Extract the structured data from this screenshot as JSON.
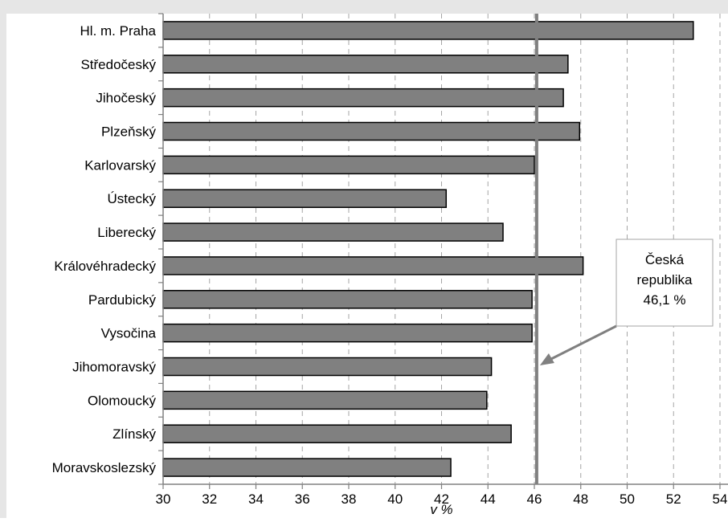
{
  "chart_data": {
    "type": "bar",
    "orientation": "horizontal",
    "categories": [
      "Hl. m. Praha",
      "Středočeský",
      "Jihočeský",
      "Plzeňský",
      "Karlovarský",
      "Ústecký",
      "Liberecký",
      "Královéhradecký",
      "Pardubický",
      "Vysočina",
      "Jihomoravský",
      "Olomoucký",
      "Zlínský",
      "Moravskoslezský"
    ],
    "values": [
      52.85,
      47.45,
      47.25,
      47.95,
      46.0,
      42.2,
      44.65,
      48.1,
      45.9,
      45.9,
      44.15,
      43.95,
      45.0,
      42.4
    ],
    "xlabel": "v %",
    "ylabel": "",
    "title": "",
    "xlim": [
      30,
      54
    ],
    "xticks": [
      30,
      32,
      34,
      36,
      38,
      40,
      42,
      44,
      46,
      48,
      50,
      52,
      54
    ],
    "grid": "vertical dashed",
    "bar_color": "#808080",
    "bar_edge_color": "#000000",
    "plot_background": "#ffffff",
    "frame_background": "#e6e6e6",
    "reference_line": {
      "value": 46.1,
      "color": "#808080",
      "label_lines": [
        "Česká",
        "republika",
        "46,1 %"
      ]
    }
  }
}
